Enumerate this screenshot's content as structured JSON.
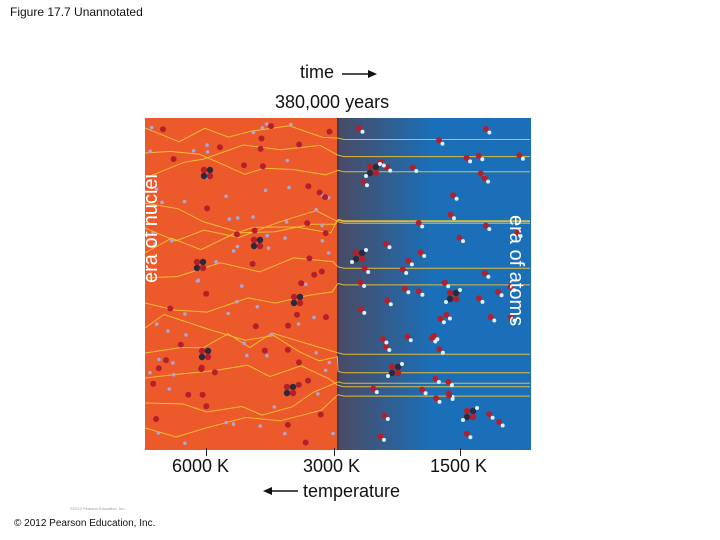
{
  "page": {
    "title": "Figure 17.7 Unannotated",
    "copyright": "© 2012 Pearson Education, Inc.",
    "fine_credit": "©2012 Pearson Education, Inc."
  },
  "figure": {
    "time_label": "time",
    "time_value": "380,000 years",
    "era_left": "era of nuclei",
    "era_right": "era of atoms",
    "temperatures": [
      "6000 K",
      "3000 K",
      "1500 K"
    ],
    "temperature_label": "temperature",
    "colors": {
      "nuclei_era": "#ec5a2c",
      "atoms_era": "#1b6fb8",
      "transition": "#4a4a63",
      "photon": "#f3c531",
      "nucleus": "#b3202c",
      "electron": "#a7a7d8",
      "atom_electron": "#d8f0ff"
    },
    "icons": [
      "right-arrow-icon",
      "left-arrow-icon"
    ]
  }
}
